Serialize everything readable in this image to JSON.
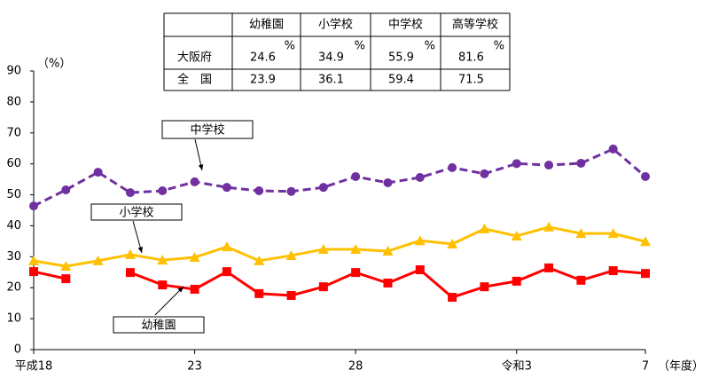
{
  "chart_data": {
    "type": "line",
    "y_label": "（%）",
    "x_label": "（年度）",
    "categories": [
      "平成18",
      null,
      null,
      null,
      null,
      "23",
      null,
      null,
      null,
      null,
      "28",
      null,
      null,
      null,
      null,
      "令和3",
      null,
      null,
      null,
      "7"
    ],
    "ylim": [
      0,
      90
    ],
    "yticks": [
      0,
      10,
      20,
      30,
      40,
      50,
      60,
      70,
      80,
      90
    ],
    "series": [
      {
        "name": "中学校",
        "color": "#7030a0",
        "marker": "circle",
        "dashed": true,
        "values": [
          46.4,
          51.6,
          57.3,
          50.7,
          51.3,
          54.2,
          52.4,
          51.3,
          51.1,
          52.4,
          55.9,
          53.9,
          55.6,
          58.8,
          56.8,
          60.1,
          59.6,
          60.2,
          64.8,
          55.9
        ]
      },
      {
        "name": "小学校",
        "color": "#ffc000",
        "marker": "triangle",
        "dashed": false,
        "values": [
          28.7,
          26.9,
          28.7,
          30.7,
          28.9,
          29.8,
          33.2,
          28.7,
          30.4,
          32.4,
          32.4,
          31.8,
          35.2,
          34.1,
          39.0,
          36.7,
          39.6,
          37.5,
          37.5,
          34.9
        ]
      },
      {
        "name": "幼稚園",
        "color": "#ff0000",
        "marker": "square",
        "dashed": false,
        "values": [
          25.2,
          22.9,
          null,
          24.9,
          20.9,
          19.5,
          25.2,
          18.1,
          17.5,
          20.3,
          24.9,
          21.5,
          25.8,
          16.9,
          20.3,
          22.1,
          26.4,
          22.4,
          25.5,
          24.6
        ]
      }
    ]
  },
  "table": {
    "unit": "%",
    "header": [
      "幼稚園",
      "小学校",
      "中学校",
      "高等学校"
    ],
    "rows": [
      [
        "大阪府",
        "24.6",
        "34.9",
        "55.9",
        "81.6"
      ],
      [
        "全　国",
        "23.9",
        "36.1",
        "59.4",
        "71.5"
      ]
    ]
  }
}
